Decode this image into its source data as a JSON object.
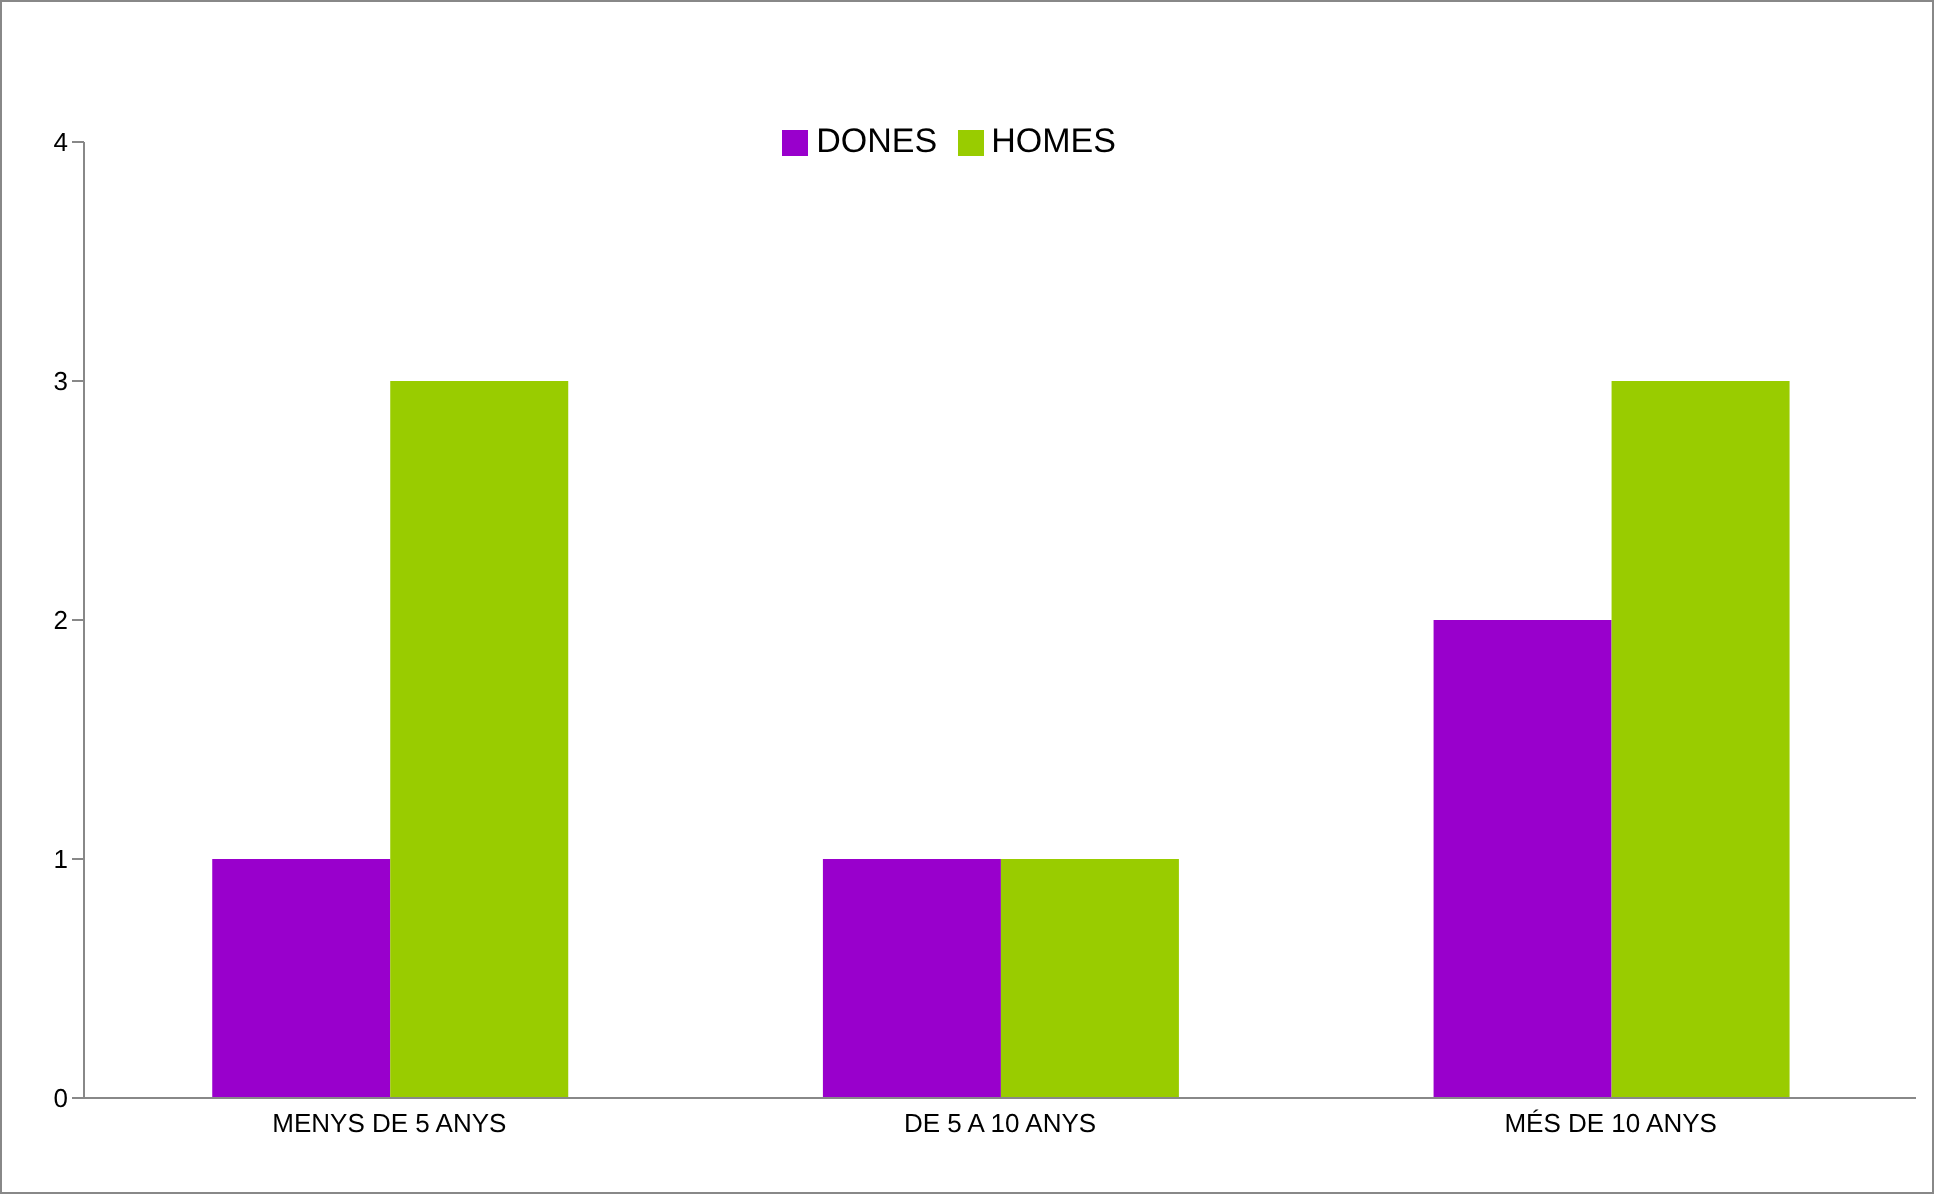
{
  "chart_data": {
    "type": "bar",
    "categories": [
      "MENYS DE 5 ANYS",
      "DE 5 A 10 ANYS",
      "MÉS DE 10 ANYS"
    ],
    "series": [
      {
        "name": "DONES",
        "color": "#9900cc",
        "values": [
          1,
          1,
          2
        ]
      },
      {
        "name": "HOMES",
        "color": "#99cc00",
        "values": [
          3,
          1,
          3
        ]
      }
    ],
    "ylim": [
      0,
      4
    ],
    "yticks": [
      0,
      1,
      2,
      3,
      4
    ],
    "grid": false,
    "legend": "top"
  }
}
